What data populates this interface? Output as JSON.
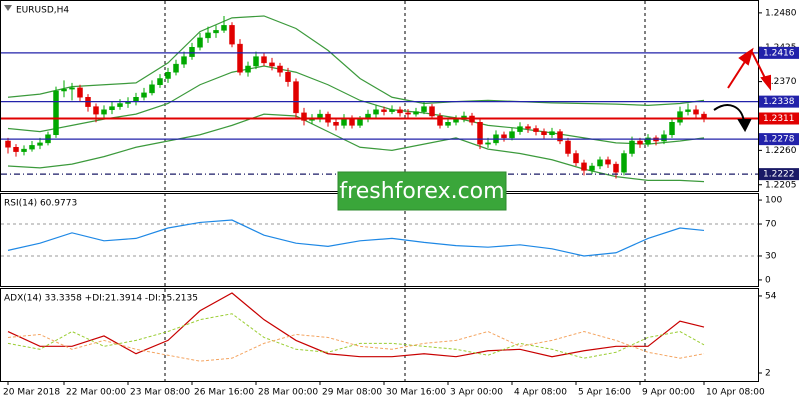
{
  "chart_data": [
    {
      "type": "candlestick",
      "title": "EURUSD,H4",
      "categories": [
        "20 Mar 2018",
        null,
        null,
        null,
        null,
        null,
        null,
        "22 Mar 00:00",
        null,
        null,
        null,
        null,
        null,
        null,
        null,
        "23 Mar 08:00",
        null,
        null,
        null,
        null,
        null,
        null,
        null,
        "26 Mar 16:00",
        null,
        null,
        null,
        null,
        null,
        null,
        null,
        "28 Mar 00:00",
        null,
        null,
        null,
        null,
        null,
        null,
        null,
        "29 Mar 08:00",
        null,
        null,
        null,
        null,
        null,
        null,
        null,
        "30 Mar 16:00",
        null,
        null,
        null,
        null,
        null,
        null,
        null,
        "3 Apr 00:00",
        null,
        null,
        null,
        null,
        null,
        null,
        null,
        "4 Apr 08:00",
        null,
        null,
        null,
        null,
        null,
        null,
        null,
        "5 Apr 16:00",
        null,
        null,
        null,
        null,
        null,
        null,
        null,
        "9 Apr 00:00",
        null,
        null,
        null,
        null,
        null,
        null,
        null,
        "10 Apr 08:00"
      ],
      "open": [
        1.2275,
        1.2265,
        1.2258,
        1.2262,
        1.2268,
        1.2272,
        1.2285,
        1.2355,
        1.2358,
        1.236,
        1.2345,
        1.233,
        1.2318,
        1.2325,
        1.233,
        1.2335,
        1.2338,
        1.2345,
        1.2352,
        1.2365,
        1.2375,
        1.2385,
        1.2398,
        1.241,
        1.2425,
        1.244,
        1.2448,
        1.2452,
        1.246,
        1.243,
        1.2385,
        1.2395,
        1.241,
        1.24,
        1.2395,
        1.2385,
        1.237,
        1.232,
        1.2308,
        1.231,
        1.2318,
        1.2305,
        1.23,
        1.2312,
        1.23,
        1.231,
        1.2318,
        1.2325,
        1.2322,
        1.2325,
        1.232,
        1.2318,
        1.2322,
        1.233,
        1.2315,
        1.23,
        1.2305,
        1.231,
        1.2315,
        1.2305,
        1.227,
        1.2272,
        1.2285,
        1.228,
        1.229,
        1.2298,
        1.2295,
        1.229,
        1.2285,
        1.229,
        1.2275,
        1.2255,
        1.224,
        1.2228,
        1.2235,
        1.2245,
        1.2238,
        1.2225,
        1.2255,
        1.2275,
        1.227,
        1.228,
        1.2275,
        1.2285,
        1.2305,
        1.2322,
        1.2325,
        1.2318
      ],
      "high": [
        1.228,
        1.227,
        1.2268,
        1.2275,
        1.228,
        1.229,
        1.2362,
        1.2372,
        1.2368,
        1.2365,
        1.235,
        1.2335,
        1.2332,
        1.2338,
        1.2342,
        1.2345,
        1.2352,
        1.236,
        1.2372,
        1.2382,
        1.2392,
        1.2405,
        1.2418,
        1.2432,
        1.2448,
        1.2458,
        1.246,
        1.2475,
        1.2465,
        1.2438,
        1.2402,
        1.2418,
        1.2415,
        1.2408,
        1.24,
        1.2392,
        1.2375,
        1.2328,
        1.2318,
        1.2325,
        1.2322,
        1.231,
        1.2318,
        1.2316,
        1.2315,
        1.2325,
        1.2332,
        1.233,
        1.2332,
        1.233,
        1.2326,
        1.2328,
        1.2338,
        1.2334,
        1.232,
        1.2312,
        1.2316,
        1.2322,
        1.232,
        1.231,
        1.228,
        1.2292,
        1.229,
        1.2296,
        1.2305,
        1.2302,
        1.23,
        1.2295,
        1.2296,
        1.2294,
        1.228,
        1.226,
        1.2245,
        1.224,
        1.225,
        1.225,
        1.2242,
        1.226,
        1.2282,
        1.228,
        1.2286,
        1.2284,
        1.2292,
        1.2312,
        1.233,
        1.2335,
        1.2332,
        1.2322
      ],
      "low": [
        1.2255,
        1.225,
        1.2252,
        1.2258,
        1.2262,
        1.2268,
        1.228,
        1.2345,
        1.234,
        1.2338,
        1.2322,
        1.2305,
        1.2312,
        1.2318,
        1.2325,
        1.2328,
        1.2332,
        1.234,
        1.2348,
        1.236,
        1.2368,
        1.238,
        1.2392,
        1.2405,
        1.242,
        1.2432,
        1.244,
        1.2448,
        1.2425,
        1.238,
        1.2378,
        1.239,
        1.2395,
        1.2388,
        1.2378,
        1.2362,
        1.2312,
        1.23,
        1.2302,
        1.2305,
        1.2298,
        1.2292,
        1.2295,
        1.2295,
        1.2296,
        1.2305,
        1.2312,
        1.2316,
        1.2318,
        1.2314,
        1.2312,
        1.2314,
        1.2318,
        1.231,
        1.2295,
        1.2296,
        1.23,
        1.2305,
        1.23,
        1.2262,
        1.2264,
        1.2268,
        1.2274,
        1.2276,
        1.2285,
        1.2288,
        1.2284,
        1.2278,
        1.228,
        1.227,
        1.225,
        1.2235,
        1.222,
        1.2222,
        1.223,
        1.2232,
        1.2215,
        1.222,
        1.225,
        1.2264,
        1.2266,
        1.2268,
        1.227,
        1.228,
        1.23,
        1.2316,
        1.2312,
        1.2305
      ],
      "close": [
        1.2265,
        1.2258,
        1.2262,
        1.2268,
        1.2272,
        1.2285,
        1.2355,
        1.2358,
        1.236,
        1.2345,
        1.233,
        1.2318,
        1.2325,
        1.233,
        1.2335,
        1.2338,
        1.2345,
        1.2352,
        1.2365,
        1.2375,
        1.2385,
        1.2398,
        1.241,
        1.2425,
        1.244,
        1.2448,
        1.2452,
        1.246,
        1.243,
        1.2385,
        1.2395,
        1.241,
        1.24,
        1.2395,
        1.2385,
        1.237,
        1.232,
        1.2308,
        1.231,
        1.2318,
        1.2305,
        1.23,
        1.2312,
        1.23,
        1.231,
        1.2318,
        1.2325,
        1.2322,
        1.2325,
        1.232,
        1.2318,
        1.2322,
        1.233,
        1.2315,
        1.23,
        1.2305,
        1.231,
        1.2315,
        1.2305,
        1.227,
        1.2272,
        1.2285,
        1.228,
        1.229,
        1.2298,
        1.2295,
        1.229,
        1.2285,
        1.229,
        1.2275,
        1.2255,
        1.224,
        1.2228,
        1.2235,
        1.2245,
        1.2238,
        1.2225,
        1.2255,
        1.2275,
        1.227,
        1.228,
        1.2275,
        1.2285,
        1.2305,
        1.2322,
        1.2325,
        1.2318,
        1.2311
      ],
      "up_color": "#00a800",
      "down_color": "#e00000",
      "x": [
        0,
        4,
        8,
        12,
        16,
        20,
        24,
        28,
        32,
        36,
        40,
        44,
        48,
        52,
        56,
        60,
        64,
        68,
        72,
        76,
        80,
        84,
        87
      ],
      "series": [
        {
          "color": "#3c9a3c",
          "values": [
            1.2345,
            1.235,
            1.2362,
            1.2365,
            1.2368,
            1.24,
            1.245,
            1.2472,
            1.2475,
            1.2455,
            1.242,
            1.2375,
            1.2345,
            1.2335,
            1.2338,
            1.234,
            1.2338,
            1.2336,
            1.2335,
            1.2334,
            1.2332,
            1.2335,
            1.234
          ]
        },
        {
          "color": "#3c9a3c",
          "values": [
            1.2295,
            1.229,
            1.23,
            1.231,
            1.2318,
            1.2335,
            1.2365,
            1.2385,
            1.2395,
            1.2385,
            1.2365,
            1.234,
            1.2325,
            1.232,
            1.2312,
            1.23,
            1.2295,
            1.2288,
            1.228,
            1.2272,
            1.227,
            1.2275,
            1.228
          ]
        },
        {
          "color": "#3c9a3c",
          "values": [
            1.2235,
            1.2232,
            1.2238,
            1.225,
            1.2265,
            1.2275,
            1.2285,
            1.23,
            1.2318,
            1.2315,
            1.229,
            1.2265,
            1.226,
            1.227,
            1.228,
            1.2262,
            1.2255,
            1.2245,
            1.223,
            1.2218,
            1.2212,
            1.2212,
            1.221
          ]
        }
      ],
      "ylim": [
        1.2195,
        1.2499
      ],
      "yticks": [
        {
          "value": 1.248,
          "label": "1.2480"
        },
        {
          "value": 1.2425,
          "label": "1.2425"
        },
        {
          "value": 1.237,
          "label": "1.2370"
        },
        {
          "value": 1.226,
          "label": "1.2260"
        },
        1.2205
      ],
      "levels": [
        {
          "value": 1.2416,
          "color": "#2222aa",
          "style": "solid"
        },
        {
          "value": 1.2338,
          "color": "#2222aa",
          "style": "solid"
        },
        {
          "value": 1.2311,
          "color": "#e00000",
          "style": "solid"
        },
        {
          "value": 1.2278,
          "color": "#2222aa",
          "style": "solid"
        },
        {
          "value": 1.2222,
          "color": "#1a1a66",
          "style": "dashdot"
        }
      ],
      "watermark": "freshforex.com"
    },
    {
      "type": "line",
      "title": "RSI(14) 60.9773",
      "x": [
        0,
        4,
        8,
        12,
        16,
        20,
        24,
        28,
        32,
        36,
        40,
        44,
        48,
        52,
        56,
        60,
        64,
        68,
        72,
        76,
        80,
        84,
        87
      ],
      "series": [
        {
          "color": "#1e88e5",
          "values": [
            37,
            46,
            59,
            49,
            52,
            65,
            72,
            75,
            56,
            46,
            42,
            49,
            52,
            47,
            43,
            41,
            44,
            39,
            30,
            34,
            52,
            65,
            62
          ]
        }
      ],
      "ylim": [
        -7.6,
        107.6
      ],
      "yticks": [
        100,
        70,
        30,
        0
      ],
      "grid": true
    },
    {
      "type": "line",
      "title": "ADX(14) 33.3358 +DI:21.3914 -DI:15.2135",
      "x": [
        0,
        4,
        8,
        12,
        16,
        20,
        24,
        28,
        32,
        36,
        40,
        44,
        48,
        52,
        56,
        60,
        64,
        68,
        72,
        76,
        80,
        84,
        87
      ],
      "series": [
        {
          "color": "#c80000",
          "dashed": false,
          "values": [
            30,
            20,
            20,
            27,
            15,
            24,
            44,
            56,
            38,
            24,
            15,
            13,
            13,
            15,
            13,
            17,
            18,
            13,
            17,
            20,
            20,
            37,
            33
          ]
        },
        {
          "color": "#9acd32",
          "dashed": true,
          "values": [
            22,
            18,
            30,
            20,
            24,
            30,
            38,
            42,
            26,
            18,
            16,
            22,
            22,
            20,
            18,
            14,
            22,
            18,
            12,
            16,
            26,
            30,
            21
          ]
        },
        {
          "color": "#f4a460",
          "dashed": true,
          "values": [
            26,
            28,
            18,
            24,
            18,
            14,
            10,
            12,
            22,
            28,
            26,
            20,
            18,
            22,
            24,
            30,
            20,
            24,
            30,
            24,
            16,
            12,
            15
          ]
        }
      ],
      "ylim": [
        -3.4,
        58.7
      ],
      "yticks": [
        54,
        2
      ],
      "grid": false
    }
  ]
}
